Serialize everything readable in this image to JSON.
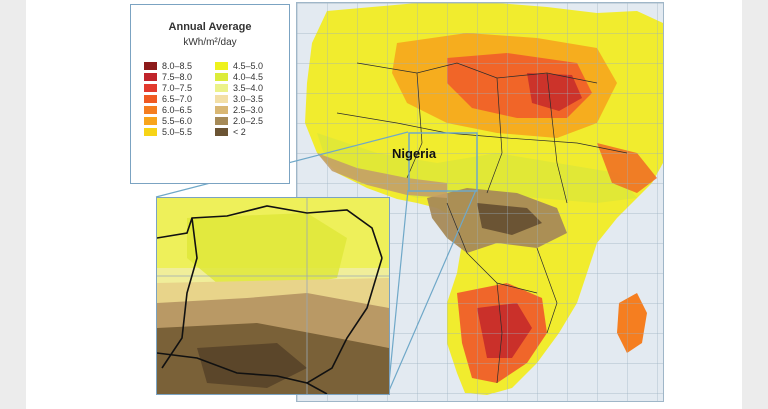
{
  "legend": {
    "title": "Annual Average",
    "unit": "kWh/m²/day",
    "items": [
      {
        "label": "8.0–8.5",
        "color": "#8c1a1a"
      },
      {
        "label": "7.5–8.0",
        "color": "#c0242b"
      },
      {
        "label": "7.0–7.5",
        "color": "#e23a2e"
      },
      {
        "label": "6.5–7.0",
        "color": "#f05a22"
      },
      {
        "label": "6.0–6.5",
        "color": "#f57e20"
      },
      {
        "label": "5.5–6.0",
        "color": "#f8a51b"
      },
      {
        "label": "5.0–5.5",
        "color": "#f7d417"
      },
      {
        "label": "4.5–5.0",
        "color": "#eef21c"
      },
      {
        "label": "4.0–4.5",
        "color": "#dcec3a"
      },
      {
        "label": "3.5–4.0",
        "color": "#ecf28a"
      },
      {
        "label": "3.0–3.5",
        "color": "#f3dfa6"
      },
      {
        "label": "2.5–3.0",
        "color": "#d9b773"
      },
      {
        "label": "2.0–2.5",
        "color": "#a68a57"
      },
      {
        "label": "< 2",
        "color": "#6b5434"
      }
    ]
  },
  "map": {
    "highlight_label": "Nigeria"
  }
}
